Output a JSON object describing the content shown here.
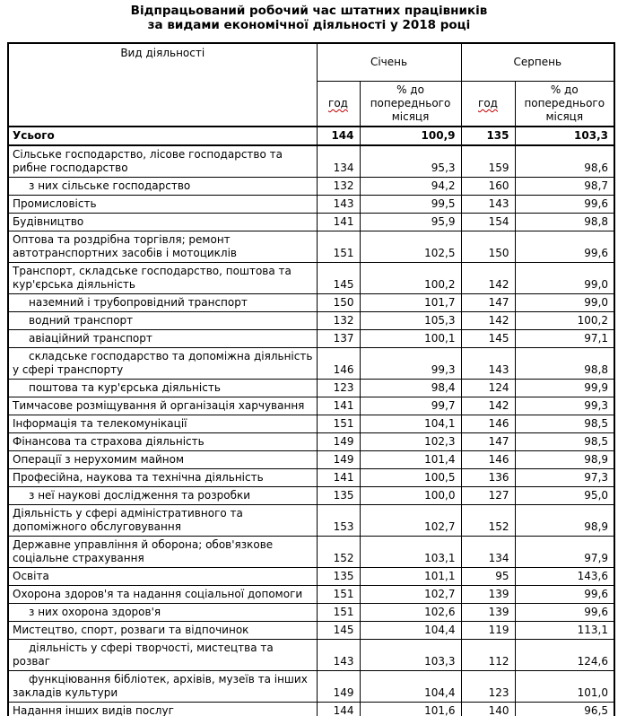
{
  "title": {
    "line1": "Відпрацьований робочий час штатних працівників",
    "line2": "за видами економічної діяльності у 2018 році"
  },
  "table": {
    "activity_header": "Вид діяльності",
    "months": [
      "Січень",
      "Серпень"
    ],
    "hours_header": "год",
    "percent_header": "% до попереднього місяця",
    "squiggle_color": "#c00000",
    "rows": [
      {
        "label": "Усього",
        "bold": true,
        "indent": false,
        "jan_hours": "144",
        "jan_pct": "100,9",
        "aug_hours": "135",
        "aug_pct": "103,3"
      },
      {
        "label": "Сільське господарство, лісове господарство та рибне господарство",
        "bold": false,
        "indent": false,
        "jan_hours": "134",
        "jan_pct": "95,3",
        "aug_hours": "159",
        "aug_pct": "98,6"
      },
      {
        "label": "з них сільське господарство",
        "bold": false,
        "indent": true,
        "jan_hours": "132",
        "jan_pct": "94,2",
        "aug_hours": "160",
        "aug_pct": "98,7"
      },
      {
        "label": "Промисловість",
        "bold": false,
        "indent": false,
        "jan_hours": "143",
        "jan_pct": "99,5",
        "aug_hours": "143",
        "aug_pct": "99,6"
      },
      {
        "label": "Будівництво",
        "bold": false,
        "indent": false,
        "jan_hours": "141",
        "jan_pct": "95,9",
        "aug_hours": "154",
        "aug_pct": "98,8"
      },
      {
        "label": "Оптова та роздрібна торгівля; ремонт автотранспортних засобів і мотоциклів",
        "bold": false,
        "indent": false,
        "jan_hours": "151",
        "jan_pct": "102,5",
        "aug_hours": "150",
        "aug_pct": "99,6"
      },
      {
        "label": "Транспорт, складське господарство, поштова та кур'єрська діяльність",
        "bold": false,
        "indent": false,
        "jan_hours": "145",
        "jan_pct": "100,2",
        "aug_hours": "142",
        "aug_pct": "99,0"
      },
      {
        "label": "наземний і трубопровідний транспорт",
        "bold": false,
        "indent": true,
        "jan_hours": "150",
        "jan_pct": "101,7",
        "aug_hours": "147",
        "aug_pct": "99,0"
      },
      {
        "label": "водний транспорт",
        "bold": false,
        "indent": true,
        "jan_hours": "132",
        "jan_pct": "105,3",
        "aug_hours": "142",
        "aug_pct": "100,2"
      },
      {
        "label": "авіаційний транспорт",
        "bold": false,
        "indent": true,
        "jan_hours": "137",
        "jan_pct": "100,1",
        "aug_hours": "145",
        "aug_pct": "97,1"
      },
      {
        "label": "складське господарство та допоміжна діяльність у сфері транспорту",
        "bold": false,
        "indent": true,
        "jan_hours": "146",
        "jan_pct": "99,3",
        "aug_hours": "143",
        "aug_pct": "98,8"
      },
      {
        "label": "поштова та кур'єрська діяльність",
        "bold": false,
        "indent": true,
        "jan_hours": "123",
        "jan_pct": "98,4",
        "aug_hours": "124",
        "aug_pct": "99,9"
      },
      {
        "label": "Тимчасове розміщування й організація харчування",
        "bold": false,
        "indent": false,
        "jan_hours": "141",
        "jan_pct": "99,7",
        "aug_hours": "142",
        "aug_pct": "99,3"
      },
      {
        "label": "Інформація та телекомунікації",
        "bold": false,
        "indent": false,
        "jan_hours": "151",
        "jan_pct": "104,1",
        "aug_hours": "146",
        "aug_pct": "98,5"
      },
      {
        "label": "Фінансова та страхова діяльність",
        "bold": false,
        "indent": false,
        "jan_hours": "149",
        "jan_pct": "102,3",
        "aug_hours": "147",
        "aug_pct": "98,5"
      },
      {
        "label": "Операції з нерухомим майном",
        "bold": false,
        "indent": false,
        "jan_hours": "149",
        "jan_pct": "101,4",
        "aug_hours": "146",
        "aug_pct": "98,9"
      },
      {
        "label": "Професійна, наукова та технічна діяльність",
        "bold": false,
        "indent": false,
        "jan_hours": "141",
        "jan_pct": "100,5",
        "aug_hours": "136",
        "aug_pct": "97,3"
      },
      {
        "label": "з неї наукові дослідження та розробки",
        "bold": false,
        "indent": true,
        "jan_hours": "135",
        "jan_pct": "100,0",
        "aug_hours": "127",
        "aug_pct": "95,0"
      },
      {
        "label": "Діяльність у сфері адміністративного та допоміжного обслуговування",
        "bold": false,
        "indent": false,
        "jan_hours": "153",
        "jan_pct": "102,7",
        "aug_hours": "152",
        "aug_pct": "98,9"
      },
      {
        "label": "Державне управління й оборона; обов'язкове соціальне страхування",
        "bold": false,
        "indent": false,
        "jan_hours": "152",
        "jan_pct": "103,1",
        "aug_hours": "134",
        "aug_pct": "97,9"
      },
      {
        "label": "Освіта",
        "bold": false,
        "indent": false,
        "jan_hours": "135",
        "jan_pct": "101,1",
        "aug_hours": "95",
        "aug_pct": "143,6"
      },
      {
        "label": "Охорона здоров'я та надання соціальної допомоги",
        "bold": false,
        "indent": false,
        "jan_hours": "151",
        "jan_pct": "102,7",
        "aug_hours": "139",
        "aug_pct": "99,6"
      },
      {
        "label": "з них охорона здоров'я",
        "bold": false,
        "indent": true,
        "jan_hours": "151",
        "jan_pct": "102,6",
        "aug_hours": "139",
        "aug_pct": "99,6"
      },
      {
        "label": "Мистецтво, спорт, розваги та відпочинок",
        "bold": false,
        "indent": false,
        "jan_hours": "145",
        "jan_pct": "104,4",
        "aug_hours": "119",
        "aug_pct": "113,1"
      },
      {
        "label": "діяльність у сфері творчості, мистецтва та розваг",
        "bold": false,
        "indent": true,
        "jan_hours": "143",
        "jan_pct": "103,3",
        "aug_hours": "112",
        "aug_pct": "124,6"
      },
      {
        "label": "функціювання бібліотек, архівів, музеїв та інших закладів культури",
        "bold": false,
        "indent": true,
        "jan_hours": "149",
        "jan_pct": "104,4",
        "aug_hours": "123",
        "aug_pct": "101,0"
      },
      {
        "label": "Надання інших видів послуг",
        "bold": false,
        "indent": false,
        "jan_hours": "144",
        "jan_pct": "101,6",
        "aug_hours": "140",
        "aug_pct": "96,5"
      }
    ]
  }
}
